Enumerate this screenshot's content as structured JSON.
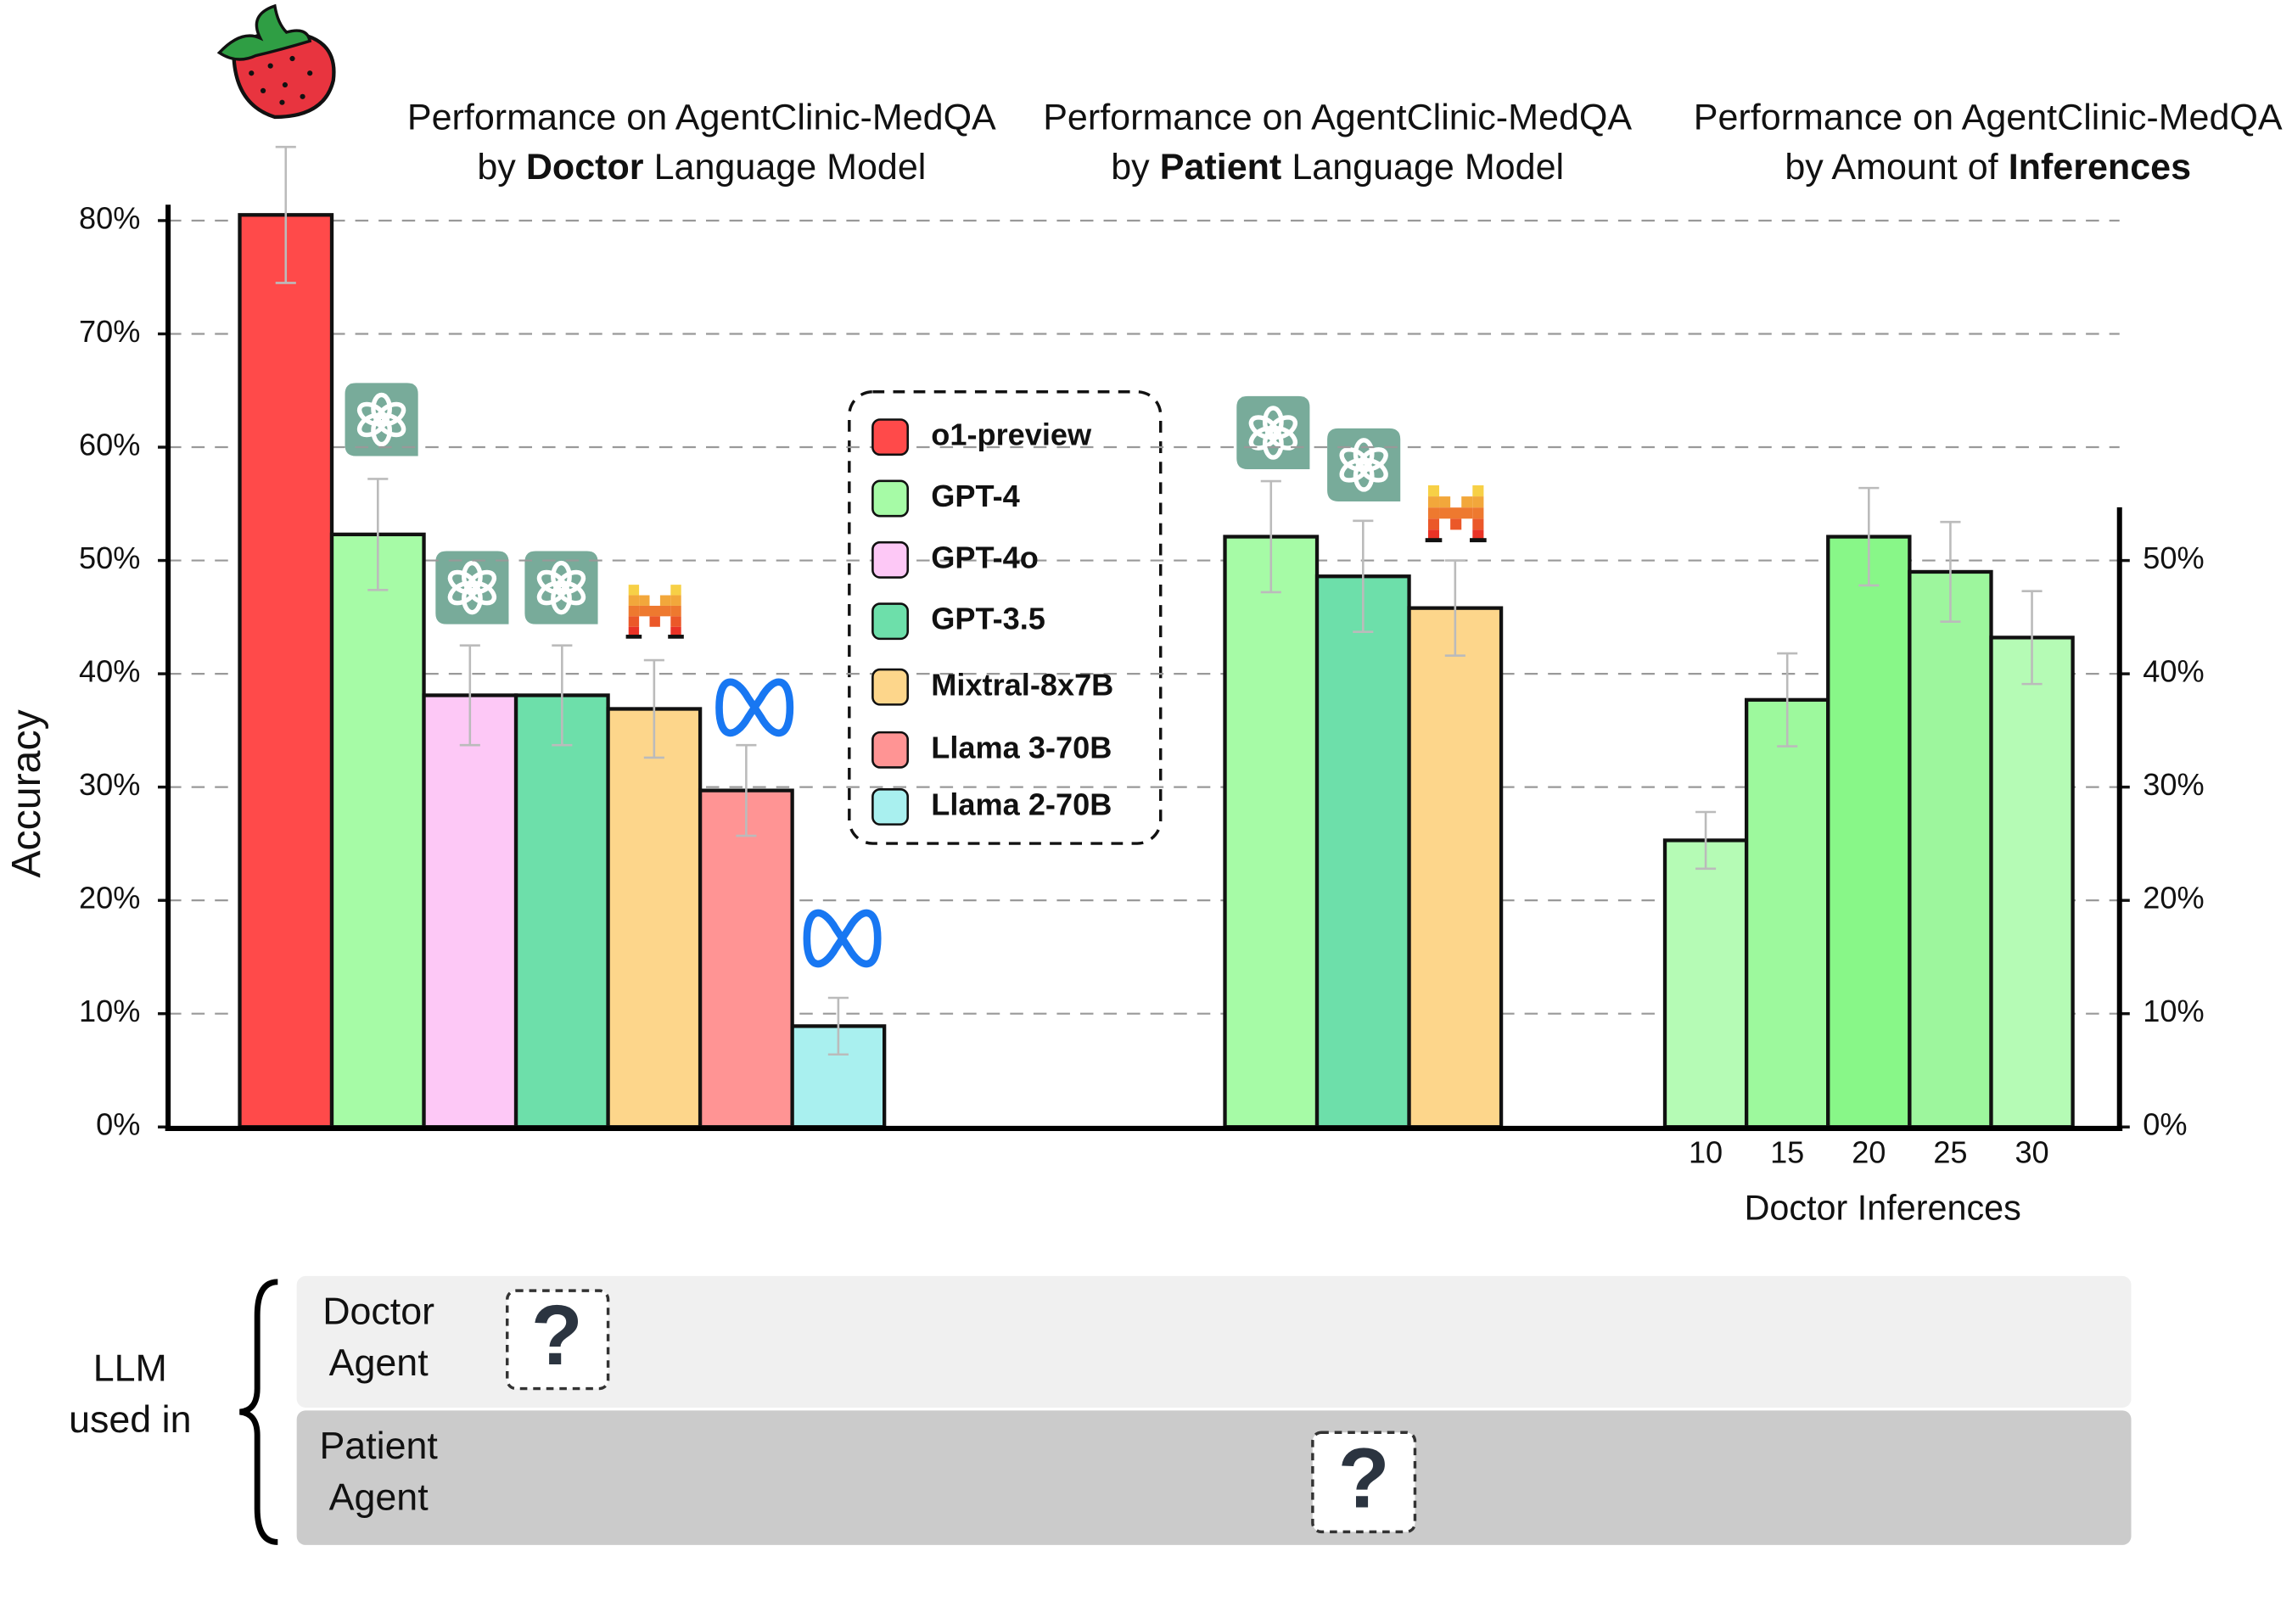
{
  "chart_data": [
    {
      "type": "bar",
      "title": {
        "line1": "Performance on AgentClinic-MedQA",
        "prefix": "by",
        "bold": "Doctor",
        "suffix": "Language Model"
      },
      "ylabel": "Accuracy",
      "categories": [
        "o1-preview",
        "GPT-4",
        "GPT-4o",
        "GPT-3.5",
        "Mixtral-8x7B",
        "Llama 3-70B",
        "Llama 2-70B"
      ],
      "values": [
        80.5,
        52.3,
        38.1,
        38.1,
        36.9,
        29.7,
        8.9
      ],
      "errors": [
        6.0,
        4.9,
        4.4,
        4.4,
        4.3,
        4.0,
        2.5
      ],
      "colors": [
        "#ff4a4a",
        "#a6fba6",
        "#fdc8f6",
        "#6ddfaa",
        "#fdd68b",
        "#ff9494",
        "#a9f0ef"
      ],
      "legend": "center",
      "ylim": [
        0,
        81.4
      ],
      "yticks": [
        {
          "value": 0,
          "label": "0%"
        },
        {
          "value": 10,
          "label": "10%"
        },
        {
          "value": 20,
          "label": "20%"
        },
        {
          "value": 30,
          "label": "30%"
        },
        {
          "value": 40,
          "label": "40%"
        },
        {
          "value": 50,
          "label": "50%"
        },
        {
          "value": 60,
          "label": "60%"
        },
        {
          "value": 70,
          "label": "70%"
        },
        {
          "value": 80,
          "label": "80%"
        }
      ],
      "grid": true
    },
    {
      "type": "bar",
      "title": {
        "line1": "Performance on AgentClinic-MedQA",
        "prefix": "by",
        "bold": "Patient",
        "suffix": "Language Model"
      },
      "values": [
        52.1,
        48.6,
        45.8
      ],
      "errors": [
        4.9,
        4.9,
        4.2
      ],
      "colors": [
        "#a6fba6",
        "#6ddfaa",
        "#fdd68b"
      ],
      "ylim": [
        0,
        81.4
      ]
    },
    {
      "type": "bar",
      "title": {
        "line1": "Performance on AgentClinic-MedQA",
        "prefix": "by Amount of",
        "bold": "Inferences"
      },
      "xlabel": "Doctor Inferences",
      "categories": [
        "10",
        "15",
        "20",
        "25",
        "30"
      ],
      "values": [
        25.3,
        37.7,
        52.1,
        49.0,
        43.2
      ],
      "errors": [
        2.5,
        4.1,
        4.3,
        4.4,
        4.1
      ],
      "colors": [
        "#b5fbb5",
        "#9df99d",
        "#88f788",
        "#9df69d",
        "#b5fbb5"
      ],
      "ylim": [
        0,
        54.7
      ],
      "yticks": [
        {
          "value": 0,
          "label": "0%"
        },
        {
          "value": 10,
          "label": "10%"
        },
        {
          "value": 20,
          "label": "20%"
        },
        {
          "value": 30,
          "label": "30%"
        },
        {
          "value": 40,
          "label": "40%"
        },
        {
          "value": 50,
          "label": "50%"
        }
      ]
    }
  ],
  "agent_table": {
    "label": [
      "LLM",
      "used in"
    ],
    "rows": [
      {
        "label": [
          "Doctor",
          "Agent"
        ]
      },
      {
        "label": [
          "Patient",
          "Agent"
        ]
      }
    ],
    "unknown": "?"
  }
}
